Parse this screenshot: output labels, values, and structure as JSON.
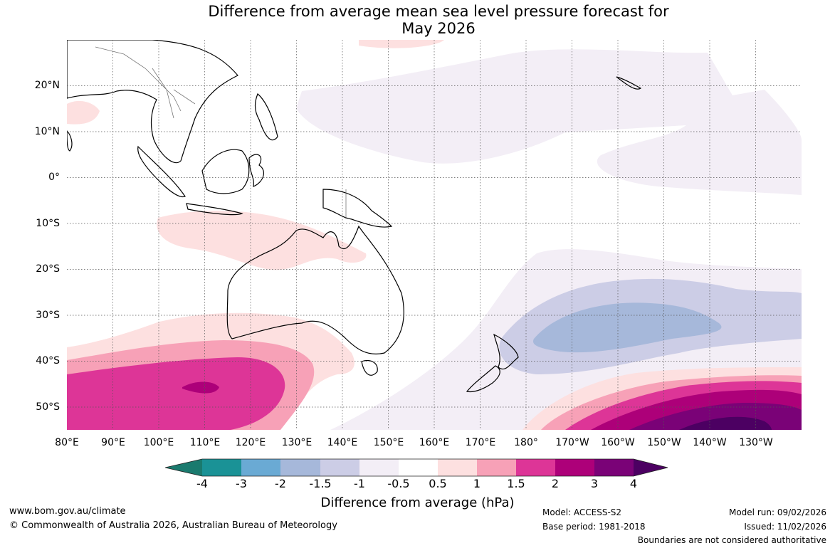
{
  "title": {
    "line1": "Difference from average mean sea level pressure forecast for",
    "line2": "May 2026"
  },
  "map": {
    "lat_labels": [
      "20°N",
      "10°N",
      "0°",
      "10°S",
      "20°S",
      "30°S",
      "40°S",
      "50°S"
    ],
    "lon_labels": [
      "80°E",
      "90°E",
      "100°E",
      "110°E",
      "120°E",
      "130°E",
      "140°E",
      "150°E",
      "160°E",
      "170°E",
      "180°",
      "170°W",
      "160°W",
      "150°W",
      "140°W",
      "130°W"
    ],
    "extent": {
      "lon_min": 80,
      "lon_max": 240,
      "lat_min": -55,
      "lat_max": 30
    }
  },
  "colorbar": {
    "ticks": [
      "-4",
      "-3",
      "-2",
      "-1.5",
      "-1",
      "-0.5",
      "0.5",
      "1",
      "1.5",
      "2",
      "3",
      "4"
    ],
    "colors": [
      "#1a7a6e",
      "#1a9296",
      "#6aaad4",
      "#a6b8da",
      "#cccde6",
      "#f3eef6",
      "#ffffff",
      "#fde0e0",
      "#f7a1b7",
      "#dd3597",
      "#ad0079",
      "#7a0277",
      "#4c0062"
    ],
    "label": "Difference from average (hPa)"
  },
  "footer": {
    "website": "www.bom.gov.au/climate",
    "copyright": "© Commonwealth of Australia 2026, Australian Bureau of Meteorology",
    "model": "Model: ACCESS-S2",
    "base_period": "Base period: 1981-2018",
    "model_run": "Model run: 09/02/2026",
    "issued": "Issued: 11/02/2026",
    "disclaimer": "Boundaries are not considered authoritative"
  }
}
